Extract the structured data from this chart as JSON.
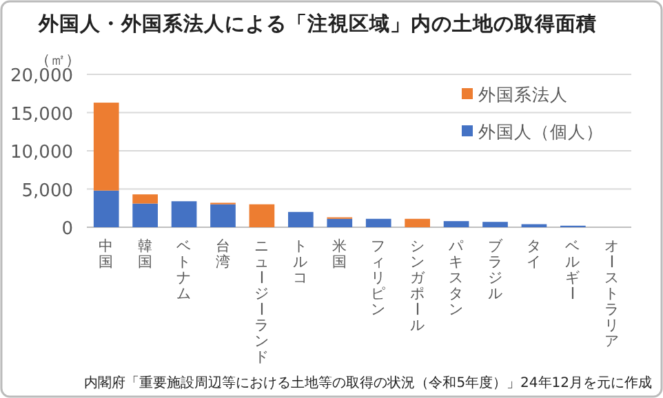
{
  "chart_data": {
    "type": "bar",
    "stacked": true,
    "title": "外国人・外国系法人による「注視区域」内の土地の取得面積",
    "ylabel": "（㎡）",
    "categories": [
      "中国",
      "韓国",
      "ベトナム",
      "台湾",
      "ニュージーランド",
      "トルコ",
      "米国",
      "フィリピン",
      "シンガポール",
      "パキスタン",
      "ブラジル",
      "タイ",
      "ベルギー",
      "オーストラリア"
    ],
    "series": [
      {
        "name": "外国人（個人）",
        "color": "#4472c4",
        "values": [
          4800,
          3100,
          3400,
          3000,
          0,
          2000,
          1100,
          1100,
          0,
          800,
          700,
          400,
          200,
          0
        ]
      },
      {
        "name": "外国系法人",
        "color": "#ed7d31",
        "values": [
          11500,
          1200,
          0,
          200,
          3000,
          0,
          200,
          0,
          1100,
          0,
          0,
          0,
          0,
          0
        ]
      }
    ],
    "ylim": [
      0,
      20000
    ],
    "yticks": [
      {
        "value": 0,
        "label": "0"
      },
      {
        "value": 5000,
        "label": "5,000"
      },
      {
        "value": 10000,
        "label": "10,000"
      },
      {
        "value": 15000,
        "label": "15,000"
      },
      {
        "value": 20000,
        "label": "20,000"
      }
    ],
    "grid": "y",
    "legend": "top right",
    "annotations": [
      "内閣府「重要施設周辺等における土地等の取得の状況（令和5年度）」24年12月を元に作成"
    ]
  }
}
